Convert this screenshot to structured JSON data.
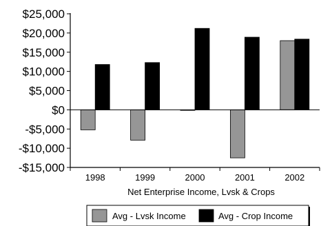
{
  "chart_data": {
    "type": "bar",
    "categories": [
      "1998",
      "1999",
      "2000",
      "2001",
      "2002"
    ],
    "series": [
      {
        "name": "Avg - Lvsk Income",
        "values": [
          -5200,
          -7900,
          -100,
          -12500,
          18000
        ],
        "color": "#969696"
      },
      {
        "name": "Avg - Crop Income",
        "values": [
          11800,
          12300,
          21200,
          18900,
          18400
        ],
        "color": "#000000"
      }
    ],
    "xlabel": "Net Enterprise Income, Lvsk & Crops",
    "ylabel": "",
    "ylim": [
      -15000,
      25000
    ],
    "yticks": [
      {
        "value": 25000,
        "label": "$25,000"
      },
      {
        "value": 20000,
        "label": "$20,000"
      },
      {
        "value": 15000,
        "label": "$15,000"
      },
      {
        "value": 10000,
        "label": "$10,000"
      },
      {
        "value": 5000,
        "label": "$5,000"
      },
      {
        "value": 0,
        "label": "$0"
      },
      {
        "value": -5000,
        "label": "-$5,000"
      },
      {
        "value": -10000,
        "label": "-$10,000"
      },
      {
        "value": -15000,
        "label": "-$15,000"
      }
    ],
    "grid": false,
    "legend_position": "bottom"
  }
}
